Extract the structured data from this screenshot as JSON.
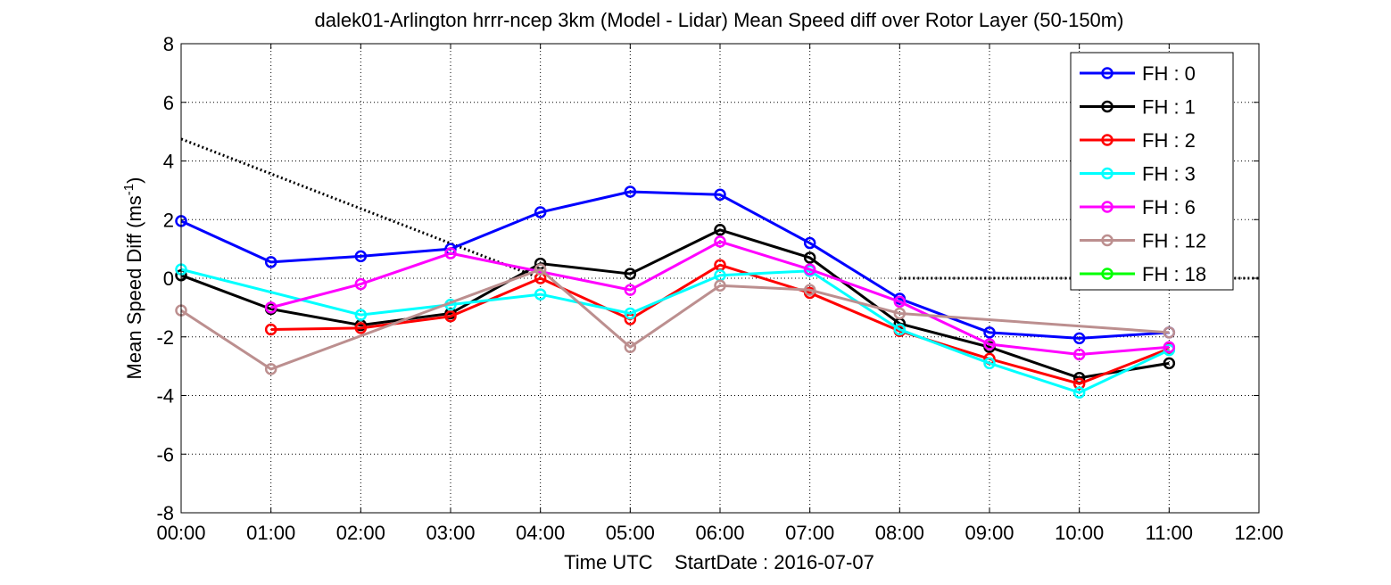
{
  "chart_data": {
    "type": "line",
    "title": "dalek01-Arlington hrrr-ncep 3km (Model - Lidar) Mean Speed diff over Rotor Layer (50-150m)",
    "xlabel": "Time UTC    StartDate : 2016-07-07",
    "ylabel_main": "Mean Speed Diff (ms",
    "ylabel_sup": "-1",
    "ylabel_close": ")",
    "x_ticks": [
      "00:00",
      "01:00",
      "02:00",
      "03:00",
      "04:00",
      "05:00",
      "06:00",
      "07:00",
      "08:00",
      "09:00",
      "10:00",
      "11:00",
      "12:00"
    ],
    "y_ticks": [
      "-8",
      "-6",
      "-4",
      "-2",
      "0",
      "2",
      "4",
      "6",
      "8"
    ],
    "xlim": [
      0,
      12
    ],
    "ylim": [
      -8,
      8
    ],
    "grid": true,
    "legend_position": "top-right",
    "series": [
      {
        "name": "FH : 0",
        "color": "#0000ff",
        "points": [
          [
            0,
            1.95
          ],
          [
            1,
            0.55
          ],
          [
            2,
            0.75
          ],
          [
            3,
            1.0
          ],
          [
            4,
            2.25
          ],
          [
            5,
            2.95
          ],
          [
            6,
            2.85
          ],
          [
            7,
            1.2
          ],
          [
            8,
            -0.7
          ],
          [
            9,
            -1.85
          ],
          [
            10,
            -2.05
          ],
          [
            11,
            -1.85
          ]
        ]
      },
      {
        "name": "FH : 1",
        "color": "#000000",
        "points": [
          [
            0,
            0.1
          ],
          [
            1,
            -1.05
          ],
          [
            2,
            -1.6
          ],
          [
            3,
            -1.2
          ],
          [
            4,
            0.5
          ],
          [
            5,
            0.15
          ],
          [
            6,
            1.65
          ],
          [
            7,
            0.7
          ],
          [
            8,
            -1.55
          ],
          [
            9,
            -2.35
          ],
          [
            10,
            -3.4
          ],
          [
            11,
            -2.9
          ]
        ]
      },
      {
        "name": "FH : 2",
        "color": "#ff0000",
        "points": [
          [
            1,
            -1.75
          ],
          [
            2,
            -1.7
          ],
          [
            3,
            -1.3
          ],
          [
            4,
            0.0
          ],
          [
            5,
            -1.4
          ],
          [
            6,
            0.45
          ],
          [
            7,
            -0.5
          ],
          [
            8,
            -1.8
          ],
          [
            9,
            -2.75
          ],
          [
            10,
            -3.6
          ],
          [
            11,
            -2.4
          ]
        ]
      },
      {
        "name": "FH : 3",
        "color": "#00ffff",
        "points": [
          [
            0,
            0.3
          ],
          [
            2,
            -1.25
          ],
          [
            3,
            -0.9
          ],
          [
            4,
            -0.55
          ],
          [
            5,
            -1.2
          ],
          [
            6,
            0.1
          ],
          [
            7,
            0.25
          ],
          [
            8,
            -1.75
          ],
          [
            9,
            -2.9
          ],
          [
            10,
            -3.9
          ],
          [
            11,
            -2.45
          ]
        ]
      },
      {
        "name": "FH : 6",
        "color": "#ff00ff",
        "points": [
          [
            1,
            -1.0
          ],
          [
            2,
            -0.2
          ],
          [
            3,
            0.85
          ],
          [
            5,
            -0.4
          ],
          [
            6,
            1.25
          ],
          [
            7,
            0.3
          ],
          [
            8,
            -0.8
          ],
          [
            9,
            -2.25
          ],
          [
            10,
            -2.6
          ],
          [
            11,
            -2.35
          ]
        ]
      },
      {
        "name": "FH : 12",
        "color": "#bc8f8f",
        "points": [
          [
            0,
            -1.1
          ],
          [
            1,
            -3.1
          ],
          [
            4,
            0.3
          ],
          [
            5,
            -2.35
          ],
          [
            6,
            -0.25
          ],
          [
            7,
            -0.4
          ],
          [
            8,
            -1.2
          ],
          [
            11,
            -1.85
          ]
        ]
      },
      {
        "name": "FH : 18",
        "color": "#00ff00",
        "points": []
      }
    ],
    "gap_connectors": [
      {
        "color": "#00ffff",
        "points": [
          [
            0,
            0.3
          ],
          [
            2,
            -1.25
          ]
        ]
      },
      {
        "color": "#ff00ff",
        "points": [
          [
            3,
            0.85
          ],
          [
            5,
            -0.4
          ]
        ]
      },
      {
        "color": "#bc8f8f",
        "points": [
          [
            1,
            -3.1
          ],
          [
            4,
            0.3
          ]
        ]
      },
      {
        "color": "#bc8f8f",
        "points": [
          [
            8,
            -1.2
          ],
          [
            11,
            -1.85
          ]
        ]
      }
    ],
    "reference_lines": [
      {
        "style": "dotted",
        "color": "#000000",
        "points": [
          [
            0,
            4.75
          ],
          [
            4,
            0
          ]
        ]
      },
      {
        "style": "dotted",
        "color": "#000000",
        "points": [
          [
            8,
            0
          ],
          [
            12,
            0
          ]
        ]
      }
    ]
  }
}
